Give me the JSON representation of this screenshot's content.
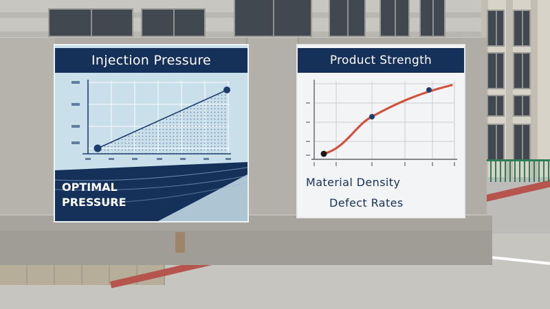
{
  "left_panel": {
    "title": "Injection Pressure",
    "caption_line1": "OPTIMAL",
    "caption_line2": "PRESSURE",
    "colors": {
      "header": "#15315a",
      "background": "#c9e0ea",
      "accent": "#1d3c6e"
    }
  },
  "right_panel": {
    "title": "Product Strength",
    "label1": "Material Density",
    "label2": "Defect Rates",
    "colors": {
      "header": "#15315a",
      "background": "#f3f4f5",
      "curve": "#d2523c",
      "point": "#1d3c6e"
    }
  },
  "scene": {
    "colors": {
      "wall": "#aeaba5",
      "sidewalk": "#bdbcb8",
      "fence": "#2e7e5a",
      "red_strip": "#b5554e"
    }
  }
}
